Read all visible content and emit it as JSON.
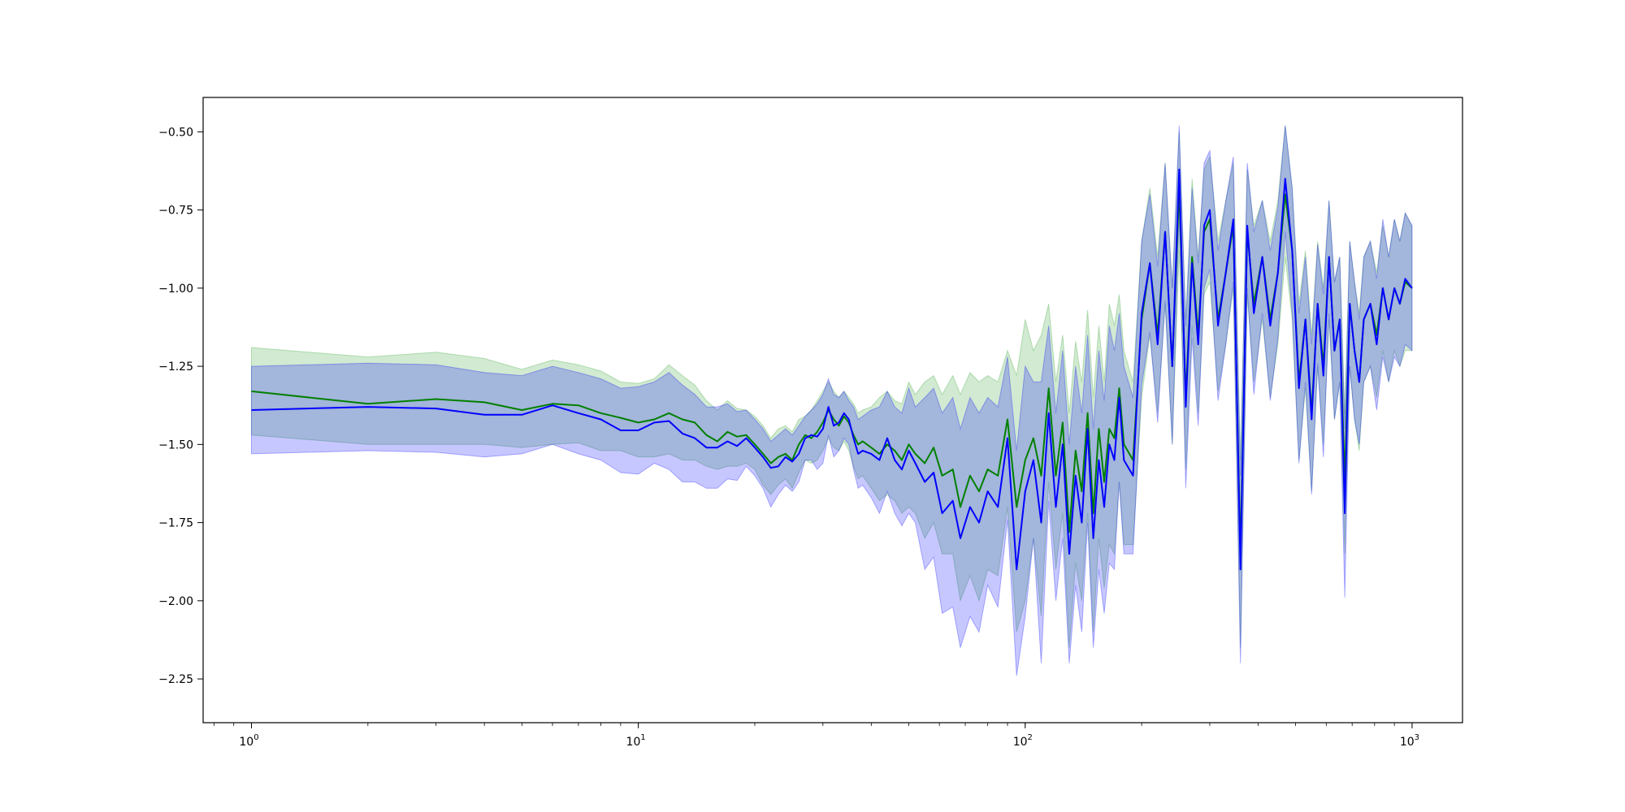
{
  "chart_data": {
    "type": "line",
    "title": "",
    "xlabel": "",
    "ylabel": "",
    "x_scale": "log",
    "xlim": [
      0.75,
      1350
    ],
    "ylim": [
      -2.39,
      -0.39
    ],
    "grid": false,
    "legend": "none",
    "x_ticks": [
      {
        "value": 1,
        "base": "10",
        "exp": "0"
      },
      {
        "value": 10,
        "base": "10",
        "exp": "1"
      },
      {
        "value": 100,
        "base": "10",
        "exp": "2"
      },
      {
        "value": 1000,
        "base": "10",
        "exp": "3"
      }
    ],
    "y_ticks": [
      {
        "value": -0.5,
        "label": "−0.50"
      },
      {
        "value": -0.75,
        "label": "−0.75"
      },
      {
        "value": -1.0,
        "label": "−1.00"
      },
      {
        "value": -1.25,
        "label": "−1.25"
      },
      {
        "value": -1.5,
        "label": "−1.50"
      },
      {
        "value": -1.75,
        "label": "−1.75"
      },
      {
        "value": -2.0,
        "label": "−2.00"
      },
      {
        "value": -2.25,
        "label": "−2.25"
      }
    ],
    "series": [
      {
        "color": "#008000",
        "band_color": "#2ca02c",
        "x": [
          1,
          2,
          3,
          4,
          5,
          6,
          7,
          8,
          9,
          10,
          11,
          12,
          13,
          14,
          15,
          16,
          17,
          18,
          19,
          20,
          21,
          22,
          23,
          24,
          25,
          26,
          27,
          28,
          29,
          30,
          31,
          32,
          33,
          34,
          35,
          36,
          37,
          38,
          40,
          42,
          44,
          46,
          48,
          50,
          52,
          55,
          58,
          61,
          65,
          68,
          72,
          76,
          80,
          85,
          90,
          95,
          100,
          105,
          110,
          115,
          120,
          125,
          130,
          135,
          140,
          145,
          150,
          155,
          160,
          165,
          170,
          175,
          180,
          190,
          200,
          210,
          220,
          230,
          240,
          250,
          260,
          270,
          280,
          290,
          300,
          315,
          330,
          345,
          360,
          375,
          390,
          410,
          430,
          450,
          470,
          490,
          510,
          530,
          550,
          570,
          590,
          610,
          630,
          650,
          670,
          690,
          710,
          730,
          750,
          780,
          810,
          840,
          870,
          900,
          930,
          960,
          1000
        ],
        "y": [
          -1.33,
          -1.37,
          -1.355,
          -1.365,
          -1.39,
          -1.37,
          -1.375,
          -1.4,
          -1.415,
          -1.43,
          -1.42,
          -1.4,
          -1.42,
          -1.43,
          -1.47,
          -1.49,
          -1.46,
          -1.475,
          -1.47,
          -1.5,
          -1.53,
          -1.56,
          -1.54,
          -1.53,
          -1.55,
          -1.5,
          -1.47,
          -1.48,
          -1.46,
          -1.43,
          -1.39,
          -1.42,
          -1.44,
          -1.41,
          -1.43,
          -1.47,
          -1.5,
          -1.49,
          -1.51,
          -1.53,
          -1.5,
          -1.52,
          -1.55,
          -1.5,
          -1.53,
          -1.56,
          -1.51,
          -1.6,
          -1.58,
          -1.7,
          -1.6,
          -1.65,
          -1.58,
          -1.6,
          -1.42,
          -1.7,
          -1.55,
          -1.48,
          -1.6,
          -1.32,
          -1.6,
          -1.43,
          -1.78,
          -1.52,
          -1.65,
          -1.4,
          -1.72,
          -1.45,
          -1.62,
          -1.45,
          -1.48,
          -1.32,
          -1.5,
          -1.55,
          -1.1,
          -0.92,
          -1.15,
          -0.82,
          -1.25,
          -0.68,
          -1.35,
          -0.9,
          -1.15,
          -0.82,
          -0.78,
          -1.1,
          -0.95,
          -0.8,
          -1.85,
          -0.82,
          -1.05,
          -0.9,
          -1.1,
          -0.95,
          -0.7,
          -0.88,
          -1.3,
          -1.1,
          -1.4,
          -1.05,
          -1.25,
          -0.9,
          -1.2,
          -1.1,
          -1.62,
          -1.05,
          -1.2,
          -1.3,
          -1.1,
          -1.05,
          -1.15,
          -1.0,
          -1.1,
          -1.0,
          -1.05,
          -0.98,
          -1.0
        ],
        "upper": [
          -1.19,
          -1.22,
          -1.205,
          -1.225,
          -1.26,
          -1.23,
          -1.245,
          -1.265,
          -1.3,
          -1.305,
          -1.29,
          -1.245,
          -1.28,
          -1.31,
          -1.36,
          -1.39,
          -1.36,
          -1.385,
          -1.39,
          -1.41,
          -1.44,
          -1.48,
          -1.45,
          -1.44,
          -1.46,
          -1.42,
          -1.41,
          -1.39,
          -1.36,
          -1.33,
          -1.3,
          -1.33,
          -1.35,
          -1.33,
          -1.35,
          -1.37,
          -1.4,
          -1.39,
          -1.38,
          -1.35,
          -1.33,
          -1.36,
          -1.37,
          -1.3,
          -1.34,
          -1.3,
          -1.28,
          -1.34,
          -1.28,
          -1.34,
          -1.27,
          -1.3,
          -1.28,
          -1.3,
          -1.2,
          -1.28,
          -1.1,
          -1.2,
          -1.15,
          -1.05,
          -1.3,
          -1.15,
          -1.4,
          -1.17,
          -1.3,
          -1.07,
          -1.35,
          -1.12,
          -1.3,
          -1.05,
          -1.12,
          -1.02,
          -1.2,
          -1.3,
          -0.85,
          -0.68,
          -0.9,
          -0.6,
          -1.0,
          -0.5,
          -1.1,
          -0.65,
          -0.9,
          -0.62,
          -0.58,
          -0.85,
          -0.72,
          -0.6,
          -1.55,
          -0.62,
          -0.8,
          -0.72,
          -0.85,
          -0.72,
          -0.48,
          -0.68,
          -1.05,
          -0.88,
          -1.15,
          -0.85,
          -1.0,
          -0.72,
          -0.98,
          -0.9,
          -1.4,
          -0.85,
          -0.98,
          -1.08,
          -0.9,
          -0.85,
          -0.95,
          -0.8,
          -0.9,
          -0.78,
          -0.85,
          -0.76,
          -0.8
        ],
        "lower": [
          -1.47,
          -1.5,
          -1.5,
          -1.5,
          -1.51,
          -1.5,
          -1.495,
          -1.52,
          -1.52,
          -1.54,
          -1.54,
          -1.53,
          -1.55,
          -1.55,
          -1.57,
          -1.58,
          -1.57,
          -1.57,
          -1.56,
          -1.58,
          -1.63,
          -1.66,
          -1.63,
          -1.61,
          -1.64,
          -1.59,
          -1.55,
          -1.56,
          -1.55,
          -1.52,
          -1.48,
          -1.51,
          -1.52,
          -1.49,
          -1.52,
          -1.57,
          -1.61,
          -1.6,
          -1.64,
          -1.68,
          -1.66,
          -1.68,
          -1.72,
          -1.7,
          -1.72,
          -1.8,
          -1.75,
          -1.85,
          -1.85,
          -2.0,
          -1.92,
          -2.0,
          -1.9,
          -1.92,
          -1.7,
          -2.1,
          -2.0,
          -1.8,
          -2.05,
          -1.62,
          -1.9,
          -1.72,
          -2.15,
          -1.88,
          -2.0,
          -1.72,
          -2.1,
          -1.8,
          -1.96,
          -1.82,
          -1.85,
          -1.62,
          -1.82,
          -1.82,
          -1.35,
          -1.15,
          -1.4,
          -1.05,
          -1.5,
          -0.88,
          -1.58,
          -1.12,
          -1.4,
          -1.02,
          -0.98,
          -1.33,
          -1.18,
          -1.0,
          -2.15,
          -1.02,
          -1.3,
          -1.1,
          -1.35,
          -1.18,
          -0.9,
          -1.1,
          -1.55,
          -1.32,
          -1.65,
          -1.25,
          -1.5,
          -1.1,
          -1.42,
          -1.3,
          -1.85,
          -1.25,
          -1.42,
          -1.52,
          -1.3,
          -1.25,
          -1.35,
          -1.2,
          -1.3,
          -1.2,
          -1.25,
          -1.2,
          -1.2
        ]
      },
      {
        "color": "#0000ff",
        "band_color": "#0000ff",
        "x": [
          1,
          2,
          3,
          4,
          5,
          6,
          7,
          8,
          9,
          10,
          11,
          12,
          13,
          14,
          15,
          16,
          17,
          18,
          19,
          20,
          21,
          22,
          23,
          24,
          25,
          26,
          27,
          28,
          29,
          30,
          31,
          32,
          33,
          34,
          35,
          36,
          37,
          38,
          40,
          42,
          44,
          46,
          48,
          50,
          52,
          55,
          58,
          61,
          65,
          68,
          72,
          76,
          80,
          85,
          90,
          95,
          100,
          105,
          110,
          115,
          120,
          125,
          130,
          135,
          140,
          145,
          150,
          155,
          160,
          165,
          170,
          175,
          180,
          190,
          200,
          210,
          220,
          230,
          240,
          250,
          260,
          270,
          280,
          290,
          300,
          315,
          330,
          345,
          360,
          375,
          390,
          410,
          430,
          450,
          470,
          490,
          510,
          530,
          550,
          570,
          590,
          610,
          630,
          650,
          670,
          690,
          710,
          730,
          750,
          780,
          810,
          840,
          870,
          900,
          930,
          960,
          1000
        ],
        "y": [
          -1.39,
          -1.38,
          -1.385,
          -1.405,
          -1.405,
          -1.375,
          -1.4,
          -1.42,
          -1.455,
          -1.455,
          -1.43,
          -1.425,
          -1.465,
          -1.48,
          -1.51,
          -1.51,
          -1.49,
          -1.505,
          -1.48,
          -1.51,
          -1.54,
          -1.575,
          -1.57,
          -1.54,
          -1.555,
          -1.53,
          -1.48,
          -1.47,
          -1.475,
          -1.45,
          -1.38,
          -1.44,
          -1.43,
          -1.4,
          -1.42,
          -1.48,
          -1.53,
          -1.52,
          -1.53,
          -1.55,
          -1.48,
          -1.55,
          -1.58,
          -1.52,
          -1.56,
          -1.62,
          -1.59,
          -1.72,
          -1.68,
          -1.8,
          -1.7,
          -1.75,
          -1.65,
          -1.7,
          -1.48,
          -1.9,
          -1.65,
          -1.55,
          -1.75,
          -1.4,
          -1.7,
          -1.5,
          -1.85,
          -1.6,
          -1.75,
          -1.45,
          -1.8,
          -1.55,
          -1.7,
          -1.5,
          -1.55,
          -1.35,
          -1.55,
          -1.6,
          -1.08,
          -0.92,
          -1.18,
          -0.82,
          -1.25,
          -0.62,
          -1.38,
          -0.92,
          -1.18,
          -0.8,
          -0.75,
          -1.12,
          -0.95,
          -0.78,
          -1.9,
          -0.8,
          -1.08,
          -0.9,
          -1.12,
          -0.95,
          -0.65,
          -0.88,
          -1.32,
          -1.1,
          -1.42,
          -1.05,
          -1.28,
          -0.9,
          -1.2,
          -1.1,
          -1.72,
          -1.05,
          -1.2,
          -1.3,
          -1.1,
          -1.05,
          -1.18,
          -1.0,
          -1.1,
          -1.0,
          -1.05,
          -0.97,
          -1.0
        ],
        "upper": [
          -1.25,
          -1.24,
          -1.245,
          -1.27,
          -1.28,
          -1.25,
          -1.27,
          -1.29,
          -1.32,
          -1.315,
          -1.3,
          -1.27,
          -1.31,
          -1.34,
          -1.38,
          -1.38,
          -1.37,
          -1.395,
          -1.39,
          -1.42,
          -1.45,
          -1.49,
          -1.47,
          -1.45,
          -1.47,
          -1.44,
          -1.41,
          -1.39,
          -1.37,
          -1.34,
          -1.29,
          -1.34,
          -1.35,
          -1.33,
          -1.36,
          -1.38,
          -1.42,
          -1.41,
          -1.39,
          -1.38,
          -1.33,
          -1.38,
          -1.4,
          -1.32,
          -1.38,
          -1.35,
          -1.32,
          -1.4,
          -1.35,
          -1.45,
          -1.35,
          -1.4,
          -1.35,
          -1.38,
          -1.22,
          -1.52,
          -1.25,
          -1.3,
          -1.3,
          -1.12,
          -1.4,
          -1.2,
          -1.5,
          -1.25,
          -1.4,
          -1.15,
          -1.45,
          -1.2,
          -1.36,
          -1.12,
          -1.2,
          -1.08,
          -1.25,
          -1.35,
          -0.85,
          -0.7,
          -0.93,
          -0.6,
          -1.0,
          -0.48,
          -1.12,
          -0.68,
          -0.92,
          -0.6,
          -0.56,
          -0.88,
          -0.72,
          -0.58,
          -1.6,
          -0.6,
          -0.82,
          -0.72,
          -0.88,
          -0.74,
          -0.48,
          -0.68,
          -1.08,
          -0.9,
          -1.18,
          -0.86,
          -1.02,
          -0.72,
          -0.98,
          -0.9,
          -1.45,
          -0.85,
          -0.98,
          -1.1,
          -0.9,
          -0.85,
          -0.97,
          -0.78,
          -0.9,
          -0.78,
          -0.85,
          -0.76,
          -0.8
        ],
        "upper_unused": null,
        "lower": [
          -1.53,
          -1.52,
          -1.525,
          -1.54,
          -1.53,
          -1.5,
          -1.53,
          -1.55,
          -1.59,
          -1.595,
          -1.56,
          -1.58,
          -1.62,
          -1.62,
          -1.64,
          -1.64,
          -1.61,
          -1.615,
          -1.57,
          -1.6,
          -1.64,
          -1.7,
          -1.66,
          -1.63,
          -1.65,
          -1.62,
          -1.55,
          -1.55,
          -1.58,
          -1.56,
          -1.47,
          -1.54,
          -1.52,
          -1.48,
          -1.5,
          -1.58,
          -1.64,
          -1.63,
          -1.67,
          -1.72,
          -1.65,
          -1.72,
          -1.76,
          -1.72,
          -1.75,
          -1.9,
          -1.86,
          -2.04,
          -2.02,
          -2.15,
          -2.05,
          -2.1,
          -1.95,
          -2.02,
          -1.74,
          -2.24,
          -2.05,
          -1.8,
          -2.2,
          -1.68,
          -2.0,
          -1.8,
          -2.2,
          -1.95,
          -2.1,
          -1.75,
          -2.15,
          -1.9,
          -2.04,
          -1.88,
          -1.9,
          -1.62,
          -1.85,
          -1.85,
          -1.31,
          -1.14,
          -1.43,
          -1.04,
          -1.5,
          -0.76,
          -1.64,
          -1.16,
          -1.44,
          -1.0,
          -0.94,
          -1.36,
          -1.18,
          -0.98,
          -2.2,
          -1.0,
          -1.34,
          -1.08,
          -1.36,
          -1.16,
          -0.82,
          -1.08,
          -1.56,
          -1.3,
          -1.66,
          -1.24,
          -1.54,
          -1.08,
          -1.42,
          -1.3,
          -1.99,
          -1.25,
          -1.42,
          -1.5,
          -1.3,
          -1.25,
          -1.39,
          -1.22,
          -1.3,
          -1.22,
          -1.25,
          -1.18,
          -1.2
        ]
      }
    ]
  }
}
